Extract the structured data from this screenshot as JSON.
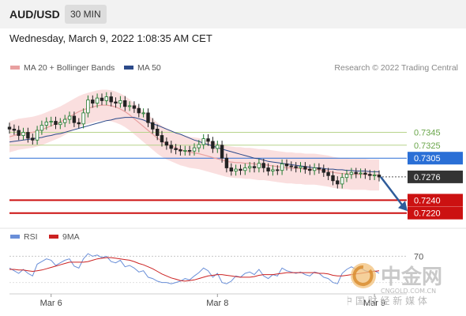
{
  "header": {
    "pair": "AUD/USD",
    "timeframe": "30 MIN",
    "datetime": "Wednesday, March 9, 2022 1:08:35 AM CET"
  },
  "legend": {
    "ma20_label": "MA 20 + Bollinger Bands",
    "ma50_label": "MA 50",
    "credit": "Research © 2022 Trading Central"
  },
  "rsi_legend": {
    "rsi_label": "RSI",
    "ma_label": "9MA"
  },
  "colors": {
    "ma20": "#e8a0a0",
    "bollinger_fill": "#f9d9d9",
    "ma50": "#2c4a8a",
    "resistance_line": "#b7d48a",
    "pivot": "#2a6fd6",
    "support": "#cc1111",
    "last_price": "#333333",
    "candle_up": "#1e7a2e",
    "candle_down": "#222222",
    "rsi": "#6a8fd8",
    "rsi_ma": "#cc2222"
  },
  "watermark": {
    "brand_cn": "中金网",
    "domain": "CNGOLD.COM.CN",
    "slogan_cn": "中 国 财 经 新 媒 体"
  },
  "chart_data": {
    "type": "line",
    "title": "AUD/USD",
    "timeframe": "30 MIN",
    "ylim": [
      0.7205,
      0.7425
    ],
    "price_levels": [
      {
        "label": "0.7345",
        "value": 0.7345,
        "kind": "resistance"
      },
      {
        "label": "0.7325",
        "value": 0.7325,
        "kind": "resistance"
      },
      {
        "label": "0.7305",
        "value": 0.7305,
        "kind": "pivot"
      },
      {
        "label": "0.7276",
        "value": 0.7276,
        "kind": "last"
      },
      {
        "label": "0.7240",
        "value": 0.724,
        "kind": "support"
      },
      {
        "label": "0.7220",
        "value": 0.722,
        "kind": "support"
      }
    ],
    "x_tick_labels": [
      {
        "label": "Mar 6",
        "index": 9
      },
      {
        "label": "Mar 8",
        "index": 45
      },
      {
        "label": "Mar 9",
        "index": 79
      }
    ],
    "close": [
      0.735,
      0.7348,
      0.734,
      0.7345,
      0.7336,
      0.7333,
      0.7348,
      0.7356,
      0.7361,
      0.7362,
      0.7357,
      0.736,
      0.7365,
      0.737,
      0.736,
      0.7358,
      0.7375,
      0.7395,
      0.739,
      0.7398,
      0.7394,
      0.74,
      0.7392,
      0.739,
      0.7394,
      0.7385,
      0.7386,
      0.7382,
      0.7375,
      0.7375,
      0.736,
      0.735,
      0.734,
      0.733,
      0.7325,
      0.732,
      0.7318,
      0.7316,
      0.7317,
      0.7316,
      0.7321,
      0.7326,
      0.7335,
      0.7331,
      0.732,
      0.7325,
      0.7305,
      0.729,
      0.7285,
      0.7288,
      0.7286,
      0.729,
      0.7292,
      0.729,
      0.7297,
      0.729,
      0.7285,
      0.7287,
      0.7286,
      0.7296,
      0.7293,
      0.7292,
      0.729,
      0.7292,
      0.7288,
      0.7286,
      0.729,
      0.7288,
      0.7283,
      0.7278,
      0.727,
      0.7265,
      0.7275,
      0.728,
      0.7283,
      0.7281,
      0.7282,
      0.728,
      0.7278,
      0.7279,
      0.7276
    ],
    "ma20": [
      0.7338,
      0.734,
      0.7342,
      0.7343,
      0.7344,
      0.7345,
      0.7347,
      0.7349,
      0.7352,
      0.7355,
      0.7358,
      0.7361,
      0.7365,
      0.7369,
      0.7373,
      0.7377,
      0.738,
      0.7382,
      0.7384,
      0.7386,
      0.7387,
      0.7387,
      0.7386,
      0.7384,
      0.7381,
      0.7377,
      0.7372,
      0.7366,
      0.736,
      0.7354,
      0.7348,
      0.7342,
      0.7336,
      0.7331,
      0.7327,
      0.7324,
      0.7321,
      0.7318,
      0.7316,
      0.7314,
      0.7313,
      0.7312,
      0.731,
      0.7308,
      0.7306,
      0.7304,
      0.7302,
      0.73,
      0.7299,
      0.7298,
      0.7298,
      0.7297,
      0.7297,
      0.7296,
      0.7295,
      0.7295,
      0.7294,
      0.7293,
      0.7292,
      0.7291,
      0.729,
      0.729,
      0.7289,
      0.7289,
      0.7288,
      0.7288,
      0.7288,
      0.7287,
      0.7286,
      0.7285,
      0.7283,
      0.7282,
      0.7281,
      0.7281,
      0.728,
      0.728,
      0.728,
      0.728,
      0.7279,
      0.7279,
      0.7279
    ],
    "ma50": [
      0.733,
      0.7331,
      0.7332,
      0.7333,
      0.7334,
      0.7335,
      0.7336,
      0.7337,
      0.7339,
      0.734,
      0.7342,
      0.7343,
      0.7345,
      0.7347,
      0.7349,
      0.7351,
      0.7353,
      0.7355,
      0.7357,
      0.7359,
      0.7361,
      0.7363,
      0.7364,
      0.7366,
      0.7367,
      0.7368,
      0.7368,
      0.7368,
      0.7366,
      0.7364,
      0.7361,
      0.7358,
      0.7356,
      0.7353,
      0.735,
      0.7347,
      0.7344,
      0.7342,
      0.7339,
      0.7336,
      0.7333,
      0.7331,
      0.7328,
      0.7326,
      0.7324,
      0.7321,
      0.7319,
      0.7317,
      0.7315,
      0.7313,
      0.7311,
      0.7309,
      0.7307,
      0.7305,
      0.7304,
      0.7302,
      0.73,
      0.7299,
      0.7298,
      0.7297,
      0.7296,
      0.7295,
      0.7294,
      0.7293,
      0.7292,
      0.7291,
      0.729,
      0.729,
      0.7289,
      0.7288,
      0.7288,
      0.7287,
      0.7287,
      0.7286,
      0.7286,
      0.7285,
      0.7285,
      0.7285,
      0.7284,
      0.7284,
      0.7284
    ],
    "band_width": 0.0024,
    "forecast": {
      "from": 0.7276,
      "to": 0.7228
    },
    "rsi": {
      "ylim": [
        15,
        85
      ],
      "levels": [
        70
      ],
      "rsi": [
        52,
        48,
        44,
        50,
        44,
        40,
        58,
        62,
        66,
        64,
        56,
        60,
        64,
        66,
        55,
        52,
        66,
        74,
        70,
        72,
        68,
        70,
        62,
        60,
        64,
        54,
        56,
        52,
        46,
        48,
        38,
        36,
        32,
        30,
        30,
        28,
        30,
        32,
        36,
        34,
        40,
        45,
        52,
        48,
        38,
        44,
        30,
        28,
        32,
        40,
        38,
        44,
        46,
        42,
        50,
        40,
        36,
        42,
        40,
        52,
        48,
        46,
        44,
        46,
        42,
        40,
        46,
        44,
        38,
        36,
        30,
        28,
        44,
        50,
        54,
        50,
        52,
        48,
        46,
        48,
        44
      ],
      "ma9": [
        50,
        50,
        49,
        49,
        48,
        47,
        48,
        49,
        51,
        53,
        55,
        57,
        59,
        61,
        61,
        61,
        61,
        62,
        64,
        66,
        67,
        68,
        68,
        67,
        66,
        65,
        64,
        62,
        59,
        57,
        54,
        51,
        47,
        43,
        40,
        37,
        35,
        33,
        32,
        33,
        34,
        36,
        38,
        40,
        41,
        42,
        42,
        41,
        40,
        39,
        38,
        38,
        38,
        39,
        41,
        42,
        42,
        42,
        43,
        44,
        45,
        45,
        45,
        45,
        45,
        45,
        45,
        44,
        44,
        43,
        41,
        40,
        40,
        41,
        42,
        43,
        44,
        45,
        46,
        47,
        48
      ]
    }
  }
}
